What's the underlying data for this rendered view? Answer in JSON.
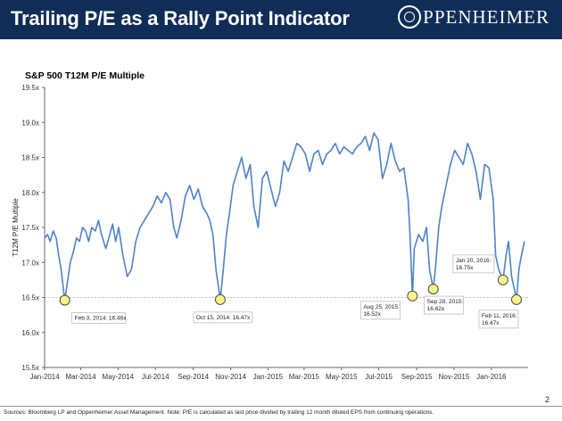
{
  "header": {
    "title": "Trailing P/E as a Rally Point Indicator",
    "logo_text": "PPENHEIMER"
  },
  "footnote": "Sources: Bloomberg LP and Oppenheimer Asset Management. Note: P/E is calculated as last price divided by trailing 12 month diluted EPS from continuing operations.",
  "page_number": "2",
  "colors": {
    "header_bg": "#0f2d57",
    "series": "#4f81c7",
    "marker_fill": "#f7f68a",
    "marker_stroke": "#4a4a4a"
  },
  "chart_data": {
    "type": "line",
    "title": "S&P 500 T12M P/E Multiple",
    "xlabel": "",
    "ylabel": "T12M P/E Multiple",
    "ylim": [
      15.5,
      19.5
    ],
    "yticks": [
      "15.5x",
      "16.0x",
      "16.5x",
      "17.0x",
      "17.5x",
      "18.0x",
      "18.5x",
      "19.0x",
      "19.5x"
    ],
    "xlim": [
      "2014-01-01",
      "2016-03-01"
    ],
    "xticks": [
      "Jan-2014",
      "Mar-2014",
      "May-2014",
      "Jul-2014",
      "Sep-2014",
      "Nov-2014",
      "Jan-2015",
      "Mar-2015",
      "May-2015",
      "Jul-2015",
      "Sep-2015",
      "Nov-2015",
      "Jan-2016"
    ],
    "reference_line": 16.5,
    "grid": false,
    "series": [
      {
        "x": [
          "2014-01-01",
          "2014-01-06",
          "2014-01-10",
          "2014-01-15",
          "2014-01-20",
          "2014-01-24",
          "2014-01-28",
          "2014-02-03",
          "2014-02-07",
          "2014-02-12",
          "2014-02-17",
          "2014-02-22",
          "2014-02-27",
          "2014-03-04",
          "2014-03-09",
          "2014-03-14",
          "2014-03-19",
          "2014-03-25",
          "2014-03-30",
          "2014-04-04",
          "2014-04-11",
          "2014-04-16",
          "2014-04-22",
          "2014-04-27",
          "2014-05-02",
          "2014-05-09",
          "2014-05-16",
          "2014-05-23",
          "2014-05-30",
          "2014-06-06",
          "2014-06-13",
          "2014-06-20",
          "2014-06-27",
          "2014-07-04",
          "2014-07-11",
          "2014-07-18",
          "2014-07-25",
          "2014-07-31",
          "2014-08-05",
          "2014-08-12",
          "2014-08-19",
          "2014-08-26",
          "2014-09-02",
          "2014-09-09",
          "2014-09-16",
          "2014-09-23",
          "2014-09-28",
          "2014-10-03",
          "2014-10-08",
          "2014-10-15",
          "2014-10-20",
          "2014-10-25",
          "2014-10-30",
          "2014-11-05",
          "2014-11-12",
          "2014-11-19",
          "2014-11-26",
          "2014-12-03",
          "2014-12-09",
          "2014-12-16",
          "2014-12-23",
          "2014-12-30",
          "2015-01-06",
          "2015-01-13",
          "2015-01-20",
          "2015-01-27",
          "2015-02-03",
          "2015-02-10",
          "2015-02-17",
          "2015-02-24",
          "2015-03-03",
          "2015-03-10",
          "2015-03-17",
          "2015-03-24",
          "2015-03-31",
          "2015-04-07",
          "2015-04-14",
          "2015-04-21",
          "2015-04-28",
          "2015-05-05",
          "2015-05-12",
          "2015-05-19",
          "2015-05-26",
          "2015-06-02",
          "2015-06-09",
          "2015-06-16",
          "2015-06-23",
          "2015-06-30",
          "2015-07-07",
          "2015-07-14",
          "2015-07-21",
          "2015-07-28",
          "2015-08-04",
          "2015-08-11",
          "2015-08-18",
          "2015-08-21",
          "2015-08-25",
          "2015-08-28",
          "2015-09-04",
          "2015-09-11",
          "2015-09-17",
          "2015-09-22",
          "2015-09-28",
          "2015-10-02",
          "2015-10-07",
          "2015-10-12",
          "2015-10-19",
          "2015-10-26",
          "2015-11-02",
          "2015-11-09",
          "2015-11-16",
          "2015-11-23",
          "2015-11-30",
          "2015-12-07",
          "2015-12-14",
          "2015-12-21",
          "2015-12-28",
          "2016-01-04",
          "2016-01-08",
          "2016-01-13",
          "2016-01-20",
          "2016-01-25",
          "2016-01-29",
          "2016-02-03",
          "2016-02-08",
          "2016-02-11",
          "2016-02-15",
          "2016-02-19",
          "2016-02-24"
        ],
        "y": [
          17.35,
          17.4,
          17.3,
          17.45,
          17.35,
          17.1,
          16.9,
          16.46,
          16.7,
          17.0,
          17.15,
          17.35,
          17.3,
          17.5,
          17.45,
          17.3,
          17.5,
          17.45,
          17.6,
          17.4,
          17.2,
          17.35,
          17.55,
          17.3,
          17.5,
          17.1,
          16.8,
          16.9,
          17.3,
          17.5,
          17.6,
          17.7,
          17.8,
          17.95,
          17.85,
          18.0,
          17.9,
          17.5,
          17.35,
          17.6,
          17.95,
          18.1,
          17.9,
          18.05,
          17.8,
          17.7,
          17.6,
          17.4,
          16.9,
          16.47,
          16.9,
          17.4,
          17.7,
          18.1,
          18.3,
          18.5,
          18.2,
          18.4,
          17.8,
          17.5,
          18.2,
          18.3,
          18.05,
          17.8,
          18.0,
          18.45,
          18.3,
          18.5,
          18.7,
          18.65,
          18.55,
          18.3,
          18.55,
          18.6,
          18.4,
          18.55,
          18.6,
          18.7,
          18.55,
          18.65,
          18.6,
          18.55,
          18.65,
          18.7,
          18.8,
          18.6,
          18.85,
          18.75,
          18.2,
          18.4,
          18.7,
          18.45,
          18.3,
          18.35,
          17.9,
          17.4,
          16.52,
          17.2,
          17.4,
          17.3,
          17.5,
          16.9,
          16.62,
          16.95,
          17.5,
          17.8,
          18.1,
          18.4,
          18.6,
          18.5,
          18.4,
          18.7,
          18.55,
          18.3,
          17.9,
          18.4,
          18.35,
          17.9,
          17.1,
          16.9,
          16.75,
          17.1,
          17.3,
          16.8,
          16.6,
          16.47,
          16.9,
          17.1,
          17.3
        ]
      }
    ],
    "annotations": [
      {
        "text": "Feb 3, 2014: 16.46x",
        "x": "2014-02-03",
        "y": 16.46
      },
      {
        "text": "Oct 15, 2014: 16.47x",
        "x": "2014-10-15",
        "y": 16.47
      },
      {
        "text": "Aug 25, 2015:\n16.52x",
        "x": "2015-08-25",
        "y": 16.52
      },
      {
        "text": "Sep 28, 2015:\n16.62x",
        "x": "2015-09-28",
        "y": 16.62
      },
      {
        "text": "Jan 20, 2016:\n16.75x",
        "x": "2016-01-20",
        "y": 16.75
      },
      {
        "text": "Feb 11, 2016:\n16.47x",
        "x": "2016-02-11",
        "y": 16.47
      }
    ]
  }
}
